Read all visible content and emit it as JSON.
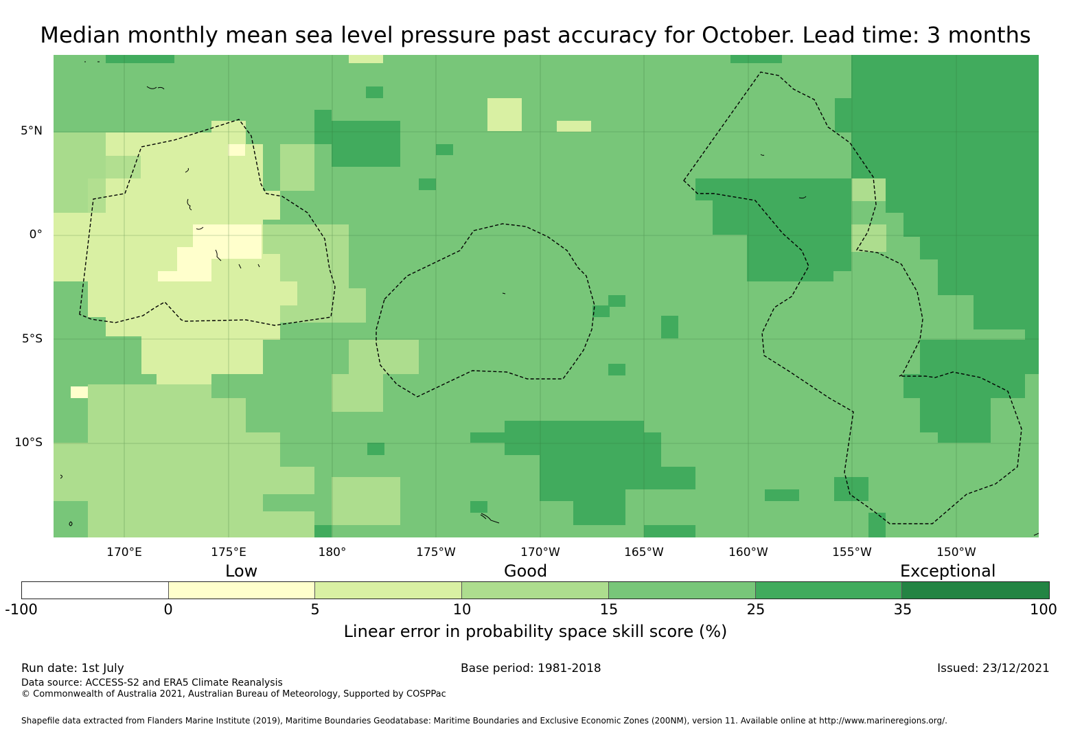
{
  "title": "Median monthly mean sea level pressure past accuracy for October. Lead time: 3 months",
  "map": {
    "lat_labels": [
      "5°N",
      "0°",
      "5°S",
      "10°S"
    ],
    "lon_labels": [
      "170°E",
      "175°E",
      "180°",
      "175°W",
      "170°W",
      "165°W",
      "160°W",
      "155°W",
      "150°W"
    ],
    "extent": {
      "lon_min": 166.6,
      "lon_max": 213.9,
      "lat_min": -14.5,
      "lat_max": 8.7
    },
    "fill_note_colors": {
      "0-5": "#ffffcc",
      "5-10": "#d9f0a3",
      "10-15": "#addd8e",
      "15-25": "#78c679",
      "25-35": "#41ab5d",
      "35-100": "#238443"
    }
  },
  "legend": {
    "categories": [
      "Low",
      "Good",
      "Exceptional"
    ],
    "ticks": [
      "-100",
      "0",
      "5",
      "10",
      "15",
      "25",
      "35",
      "100"
    ],
    "colors": [
      "#ffffff",
      "#ffffcc",
      "#d9f0a3",
      "#addd8e",
      "#78c679",
      "#41ab5d",
      "#238443"
    ],
    "title": "Linear error in probability space skill score (%)"
  },
  "footer": {
    "run_date": "Run date: 1st July",
    "base_period": "Base period: 1981-2018",
    "issued": "Issued: 23/12/2021",
    "data_source": "Data source: ACCESS-S2 and ERA5 Climate Reanalysis",
    "copyright": "© Commonwealth of Australia 2021, Australian Bureau of Meteorology, Supported by COSPPac",
    "shapefile": "Shapefile data extracted from Flanders Marine Institute (2019), Maritime Boundaries Geodatabase: Maritime Boundaries and Exclusive Economic Zones (200NM), version 11. Available online at http://www.marineregions.org/."
  }
}
